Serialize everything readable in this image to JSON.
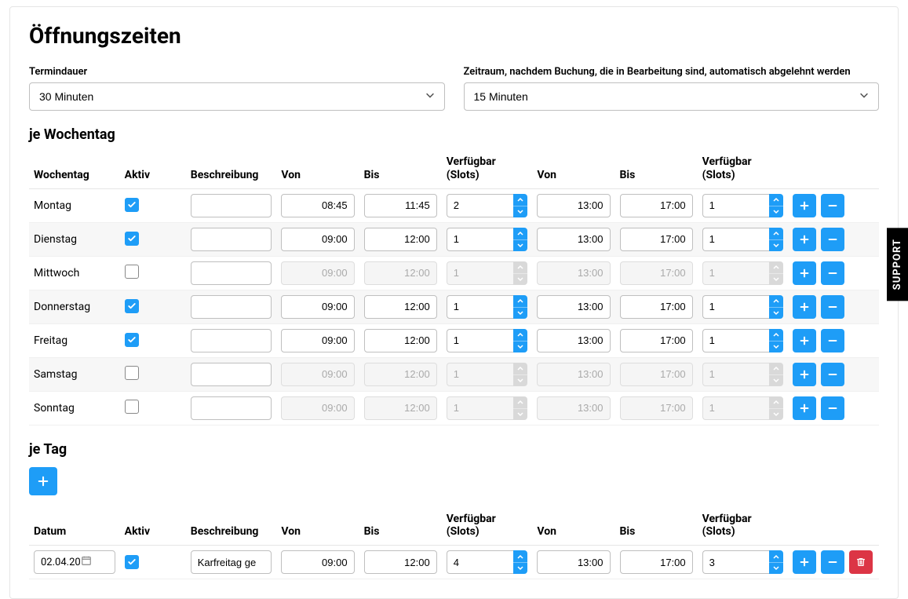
{
  "colors": {
    "accent": "#1e9df7",
    "danger": "#dc3545",
    "border": "#bfbfbf",
    "text": "#000000",
    "muted": "#aaaaaa",
    "strip": "#f7f7f7",
    "bg": "#ffffff"
  },
  "title": "Öffnungszeiten",
  "duration": {
    "label": "Termindauer",
    "value": "30 Minuten"
  },
  "reject": {
    "label": "Zeitraum, nachdem Buchung, die in Bearbeitung sind, automatisch abgelehnt werden",
    "value": "15 Minuten"
  },
  "weekly": {
    "heading": "je Wochentag",
    "headers": {
      "day": "Wochentag",
      "active": "Aktiv",
      "desc": "Beschreibung",
      "from": "Von",
      "to": "Bis",
      "slots": "Verfügbar (Slots)"
    },
    "rows": [
      {
        "day": "Montag",
        "active": true,
        "desc": "",
        "from1": "08:45",
        "to1": "11:45",
        "slots1": "2",
        "from2": "13:00",
        "to2": "17:00",
        "slots2": "1",
        "striped": false
      },
      {
        "day": "Dienstag",
        "active": true,
        "desc": "",
        "from1": "09:00",
        "to1": "12:00",
        "slots1": "1",
        "from2": "13:00",
        "to2": "17:00",
        "slots2": "1",
        "striped": true
      },
      {
        "day": "Mittwoch",
        "active": false,
        "desc": "",
        "from1": "09:00",
        "to1": "12:00",
        "slots1": "1",
        "from2": "13:00",
        "to2": "17:00",
        "slots2": "1",
        "striped": false
      },
      {
        "day": "Donnerstag",
        "active": true,
        "desc": "",
        "from1": "09:00",
        "to1": "12:00",
        "slots1": "1",
        "from2": "13:00",
        "to2": "17:00",
        "slots2": "1",
        "striped": true
      },
      {
        "day": "Freitag",
        "active": true,
        "desc": "",
        "from1": "09:00",
        "to1": "12:00",
        "slots1": "1",
        "from2": "13:00",
        "to2": "17:00",
        "slots2": "1",
        "striped": false
      },
      {
        "day": "Samstag",
        "active": false,
        "desc": "",
        "from1": "09:00",
        "to1": "12:00",
        "slots1": "1",
        "from2": "13:00",
        "to2": "17:00",
        "slots2": "1",
        "striped": true
      },
      {
        "day": "Sonntag",
        "active": false,
        "desc": "",
        "from1": "09:00",
        "to1": "12:00",
        "slots1": "1",
        "from2": "13:00",
        "to2": "17:00",
        "slots2": "1",
        "striped": false
      }
    ]
  },
  "daily": {
    "heading": "je Tag",
    "headers": {
      "date": "Datum",
      "active": "Aktiv",
      "desc": "Beschreibung",
      "from": "Von",
      "to": "Bis",
      "slots": "Verfügbar (Slots)"
    },
    "rows": [
      {
        "date": "02.04.20",
        "active": true,
        "desc": "Karfreitag ge",
        "from1": "09:00",
        "to1": "12:00",
        "slots1": "4",
        "from2": "13:00",
        "to2": "17:00",
        "slots2": "3"
      }
    ]
  },
  "support": "SUPPORT"
}
